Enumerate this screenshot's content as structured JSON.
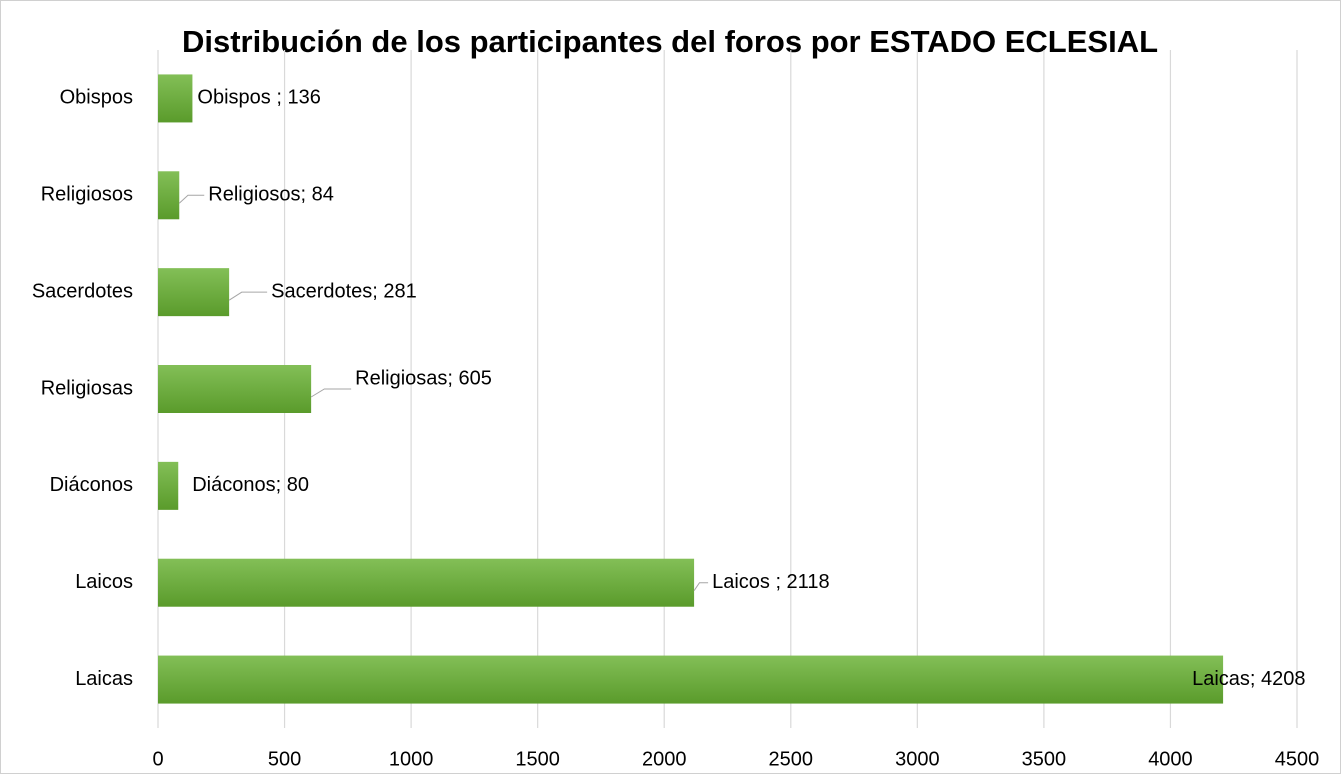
{
  "chart_data": {
    "type": "barh",
    "title": "Distribución de los participantes del foros por ESTADO ECLESIAL",
    "categories": [
      "Obispos",
      "Religiosos",
      "Sacerdotes",
      "Religiosas",
      "Diáconos",
      "Laicos",
      "Laicas"
    ],
    "values": [
      136,
      84,
      281,
      605,
      80,
      2118,
      4208
    ],
    "value_labels": [
      "Obispos ; 136",
      "Religiosos; 84",
      "Sacerdotes; 281",
      "Religiosas; 605",
      "Diáconos; 80",
      "Laicos ; 2118",
      "Laicas; 4208"
    ],
    "color": "#6aaa3a",
    "xlim": [
      0,
      4500
    ],
    "xticks": [
      0,
      500,
      1000,
      1500,
      2000,
      2500,
      3000,
      3500,
      4000,
      4500
    ],
    "grid": true
  }
}
